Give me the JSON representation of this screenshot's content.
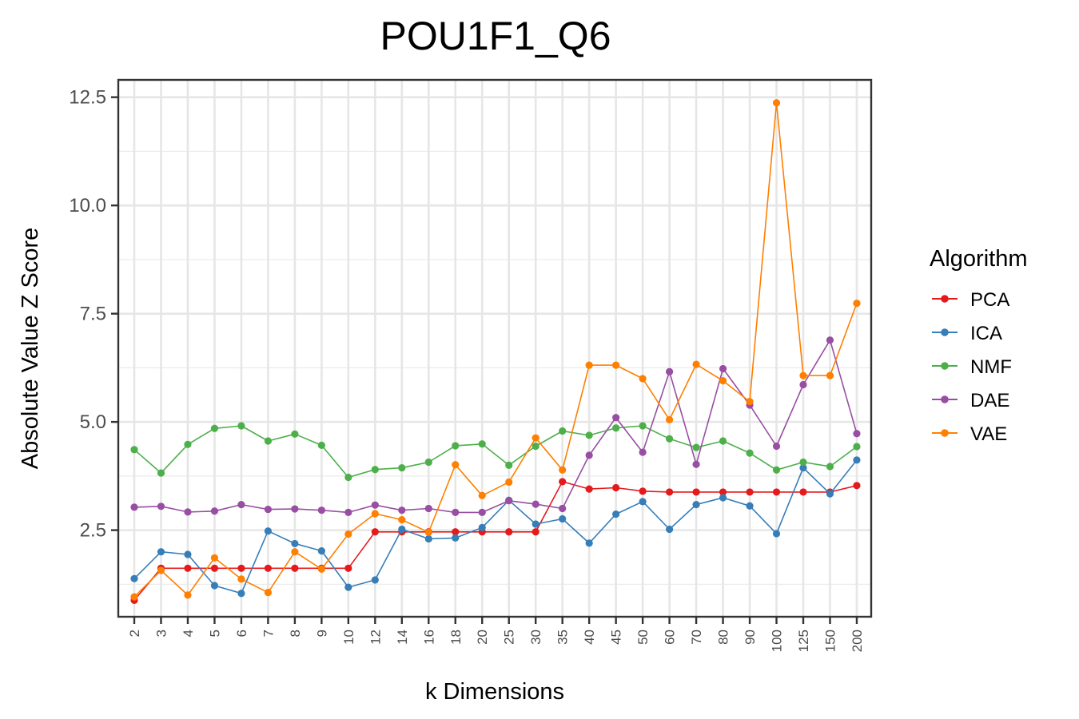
{
  "chart_data": {
    "type": "line",
    "title": "POU1F1_Q6",
    "xlabel": "k Dimensions",
    "ylabel": "Absolute Value Z Score",
    "categories": [
      "2",
      "3",
      "4",
      "5",
      "6",
      "7",
      "8",
      "9",
      "10",
      "12",
      "14",
      "16",
      "18",
      "20",
      "25",
      "30",
      "35",
      "40",
      "45",
      "50",
      "60",
      "70",
      "80",
      "90",
      "100",
      "125",
      "150",
      "200"
    ],
    "ylim": [
      0.5,
      12.9
    ],
    "yticks": [
      2.5,
      5.0,
      7.5,
      10.0,
      12.5
    ],
    "ytick_labels": [
      "2.5",
      "5.0",
      "7.5",
      "10.0",
      "12.5"
    ],
    "grid": true,
    "legend_title": "Algorithm",
    "legend_position": "right",
    "series": [
      {
        "name": "PCA",
        "color": "#e41a1c",
        "values": [
          0.88,
          1.62,
          1.62,
          1.62,
          1.62,
          1.62,
          1.62,
          1.62,
          1.62,
          2.46,
          2.46,
          2.46,
          2.46,
          2.46,
          2.46,
          2.46,
          3.62,
          3.45,
          3.48,
          3.4,
          3.38,
          3.38,
          3.38,
          3.38,
          3.38,
          3.38,
          3.38,
          3.53
        ]
      },
      {
        "name": "ICA",
        "color": "#377eb8",
        "values": [
          1.38,
          2.0,
          1.94,
          1.22,
          1.04,
          2.48,
          2.19,
          2.02,
          1.18,
          1.35,
          2.52,
          2.3,
          2.32,
          2.56,
          3.19,
          2.64,
          2.76,
          2.2,
          2.87,
          3.16,
          2.52,
          3.09,
          3.25,
          3.06,
          2.42,
          3.94,
          3.34,
          4.12
        ]
      },
      {
        "name": "NMF",
        "color": "#4daf4a",
        "values": [
          4.36,
          3.82,
          4.48,
          4.85,
          4.91,
          4.56,
          4.72,
          4.46,
          3.72,
          3.9,
          3.94,
          4.07,
          4.45,
          4.49,
          4.0,
          4.44,
          4.79,
          4.69,
          4.86,
          4.91,
          4.61,
          4.41,
          4.56,
          4.28,
          3.89,
          4.07,
          3.97,
          4.43
        ]
      },
      {
        "name": "DAE",
        "color": "#984ea3",
        "values": [
          3.03,
          3.05,
          2.92,
          2.94,
          3.09,
          2.98,
          2.99,
          2.96,
          2.91,
          3.08,
          2.96,
          3.0,
          2.91,
          2.91,
          3.18,
          3.1,
          3.0,
          4.23,
          5.1,
          4.3,
          6.16,
          4.02,
          6.23,
          5.39,
          4.44,
          5.86,
          6.89,
          4.73
        ]
      },
      {
        "name": "VAE",
        "color": "#ff7f00",
        "values": [
          0.96,
          1.57,
          1.0,
          1.86,
          1.37,
          1.06,
          2.0,
          1.6,
          2.41,
          2.88,
          2.74,
          2.45,
          4.01,
          3.3,
          3.61,
          4.63,
          3.89,
          6.31,
          6.31,
          6.0,
          5.05,
          6.33,
          5.95,
          5.47,
          12.37,
          6.07,
          6.07,
          7.74
        ]
      }
    ]
  }
}
